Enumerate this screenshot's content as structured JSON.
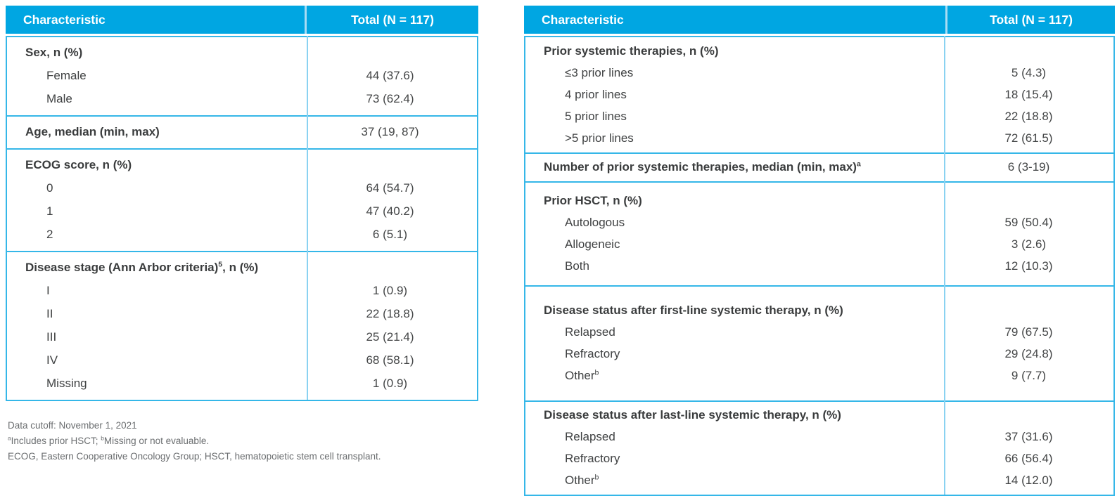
{
  "colors": {
    "header_bg": "#00a6e2",
    "border": "#35b7e8",
    "divider": "#8ad2f1",
    "header_divider": "#a8dcf4",
    "text": "#3f4142",
    "footnote": "#6b6e70",
    "header_text": "#ffffff"
  },
  "tables": [
    {
      "header": {
        "characteristic": "Characteristic",
        "total": "Total (N = 117)"
      },
      "sections": [
        {
          "label": {
            "pre": "Sex, n (%)"
          },
          "value": "",
          "rows": [
            {
              "label": "Female",
              "value": "44 (37.6)"
            },
            {
              "label": "Male",
              "value": "73 (62.4)"
            }
          ]
        },
        {
          "label": {
            "pre": "Age, median (min, max)"
          },
          "value": "37 (19, 87)",
          "rows": []
        },
        {
          "label": {
            "pre": "ECOG score, n (%)"
          },
          "value": "",
          "rows": [
            {
              "label": "0",
              "value": "64 (54.7)"
            },
            {
              "label": "1",
              "value": "47 (40.2)"
            },
            {
              "label": "2",
              "value": "6 (5.1)"
            }
          ]
        },
        {
          "label": {
            "pre": "Disease stage (Ann Arbor criteria)",
            "sup": "5",
            "post": ", n (%)"
          },
          "value": "",
          "rows": [
            {
              "label": "I",
              "value": "1 (0.9)"
            },
            {
              "label": "II",
              "value": "22 (18.8)"
            },
            {
              "label": "III",
              "value": "25 (21.4)"
            },
            {
              "label": "IV",
              "value": "68 (58.1)"
            },
            {
              "label": "Missing",
              "value": "1 (0.9)"
            }
          ]
        }
      ]
    },
    {
      "header": {
        "characteristic": "Characteristic",
        "total": "Total (N = 117)"
      },
      "sections": [
        {
          "label": {
            "pre": "Prior systemic therapies, n (%)"
          },
          "value": "",
          "rows": [
            {
              "label": "≤3 prior lines",
              "value": "5 (4.3)"
            },
            {
              "label": "4 prior lines",
              "value": "18 (15.4)"
            },
            {
              "label": "5 prior lines",
              "value": "22 (18.8)"
            },
            {
              "label": ">5 prior lines",
              "value": "72 (61.5)"
            }
          ]
        },
        {
          "label": {
            "pre": "Number of prior systemic therapies, median (min, max)",
            "sup": "a"
          },
          "value": "6 (3-19)",
          "rows": []
        },
        {
          "label": {
            "pre": "Prior HSCT, n (%)"
          },
          "value": "",
          "rows": [
            {
              "label": "Autologous",
              "value": "59 (50.4)"
            },
            {
              "label": "Allogeneic",
              "value": "3 (2.6)"
            },
            {
              "label": "Both",
              "value": "12 (10.3)"
            }
          ]
        },
        {
          "label": {
            "pre": "Disease status after first-line systemic therapy, n (%)"
          },
          "value": "",
          "rows": [
            {
              "label": "Relapsed",
              "value": "79 (67.5)"
            },
            {
              "label": "Refractory",
              "value": "29 (24.8)"
            },
            {
              "label": "Other",
              "sup": "b",
              "value": "9 (7.7)"
            }
          ]
        },
        {
          "label": {
            "pre": "Disease status after last-line systemic therapy, n (%)"
          },
          "value": "",
          "rows": [
            {
              "label": "Relapsed",
              "value": "37 (31.6)"
            },
            {
              "label": "Refractory",
              "value": "66 (56.4)"
            },
            {
              "label": "Other",
              "sup": "b",
              "value": "14 (12.0)"
            }
          ]
        }
      ]
    }
  ],
  "footnotes": [
    {
      "text1": "Data cutoff: November 1, 2021"
    },
    {
      "sup1": "a",
      "text1": "Includes prior HSCT; ",
      "sup2": "b",
      "text2": "Missing or not evaluable."
    },
    {
      "text1": "ECOG, Eastern Cooperative Oncology Group; HSCT, hematopoietic stem cell transplant."
    }
  ]
}
